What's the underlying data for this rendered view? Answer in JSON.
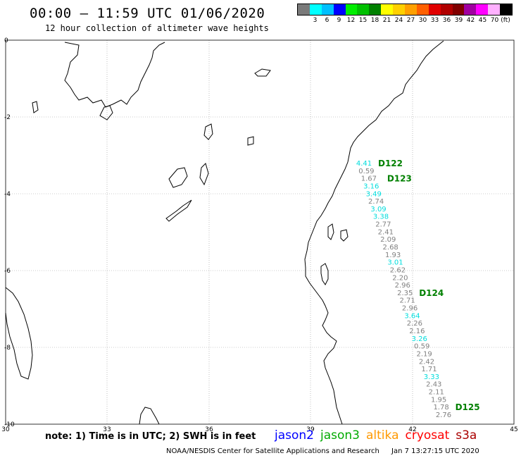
{
  "header": {
    "title": "00:00 – 11:59 UTC 01/06/2020",
    "subtitle": "12 hour collection of altimeter wave heights"
  },
  "legend": {
    "unit": "(ft)",
    "colors": [
      "#7a7a7a",
      "#00ffff",
      "#00c0ff",
      "#0000ff",
      "#00ee00",
      "#00c000",
      "#008000",
      "#ffff00",
      "#ffd000",
      "#ffa000",
      "#ff6000",
      "#e00000",
      "#b00000",
      "#800000",
      "#a000a0",
      "#ff00ff",
      "#ffb0ff",
      "#000000"
    ],
    "labels": [
      "3",
      "6",
      "9",
      "12",
      "15",
      "18",
      "21",
      "24",
      "27",
      "30",
      "33",
      "36",
      "39",
      "42",
      "45",
      "70"
    ]
  },
  "axes": {
    "x_ticks": [
      "30",
      "33",
      "36",
      "39",
      "42",
      "45"
    ],
    "y_ticks": [
      "0",
      "-2",
      "-4",
      "-6",
      "-8",
      "-10"
    ]
  },
  "passes": [
    {
      "id": "D122",
      "color": "#008000"
    },
    {
      "id": "D123",
      "color": "#008000"
    },
    {
      "id": "D124",
      "color": "#008000"
    },
    {
      "id": "D125",
      "color": "#008000"
    }
  ],
  "measurements": [
    {
      "v": "4.41",
      "c": "#00dddd"
    },
    {
      "v": "0.59",
      "c": "#808080"
    },
    {
      "v": "1.67",
      "c": "#808080"
    },
    {
      "v": "3.16",
      "c": "#00dddd"
    },
    {
      "v": "3.49",
      "c": "#00dddd"
    },
    {
      "v": "2.74",
      "c": "#808080"
    },
    {
      "v": "3.09",
      "c": "#00dddd"
    },
    {
      "v": "3.38",
      "c": "#00dddd"
    },
    {
      "v": "2.77",
      "c": "#808080"
    },
    {
      "v": "2.41",
      "c": "#808080"
    },
    {
      "v": "2.09",
      "c": "#808080"
    },
    {
      "v": "2.68",
      "c": "#808080"
    },
    {
      "v": "1.93",
      "c": "#808080"
    },
    {
      "v": "3.01",
      "c": "#00dddd"
    },
    {
      "v": "2.62",
      "c": "#808080"
    },
    {
      "v": "2.20",
      "c": "#808080"
    },
    {
      "v": "2.96",
      "c": "#808080"
    },
    {
      "v": "2.35",
      "c": "#808080"
    },
    {
      "v": "2.71",
      "c": "#808080"
    },
    {
      "v": "2.96",
      "c": "#808080"
    },
    {
      "v": "3.64",
      "c": "#00dddd"
    },
    {
      "v": "2.26",
      "c": "#808080"
    },
    {
      "v": "2.16",
      "c": "#808080"
    },
    {
      "v": "3.26",
      "c": "#00dddd"
    },
    {
      "v": "0.59",
      "c": "#808080"
    },
    {
      "v": "2.19",
      "c": "#808080"
    },
    {
      "v": "2.42",
      "c": "#808080"
    },
    {
      "v": "1.71",
      "c": "#808080"
    },
    {
      "v": "3.33",
      "c": "#00dddd"
    },
    {
      "v": "2.43",
      "c": "#808080"
    },
    {
      "v": "2.11",
      "c": "#808080"
    },
    {
      "v": "1.95",
      "c": "#808080"
    },
    {
      "v": "1.78",
      "c": "#808080"
    },
    {
      "v": "2.76",
      "c": "#808080"
    }
  ],
  "footer_note": "note: 1) Time is in UTC; 2) SWH is in feet",
  "satellites": [
    {
      "name": "jason2",
      "color": "#0000ff"
    },
    {
      "name": "jason3",
      "color": "#00aa00"
    },
    {
      "name": "altika",
      "color": "#ff9900"
    },
    {
      "name": "cryosat",
      "color": "#ff0000"
    },
    {
      "name": "s3a",
      "color": "#aa0000"
    }
  ],
  "credit": "NOAA/NESDIS Center for Satellite Applications and Research",
  "generated": "Jan  7 13:27:15 UTC 2020"
}
